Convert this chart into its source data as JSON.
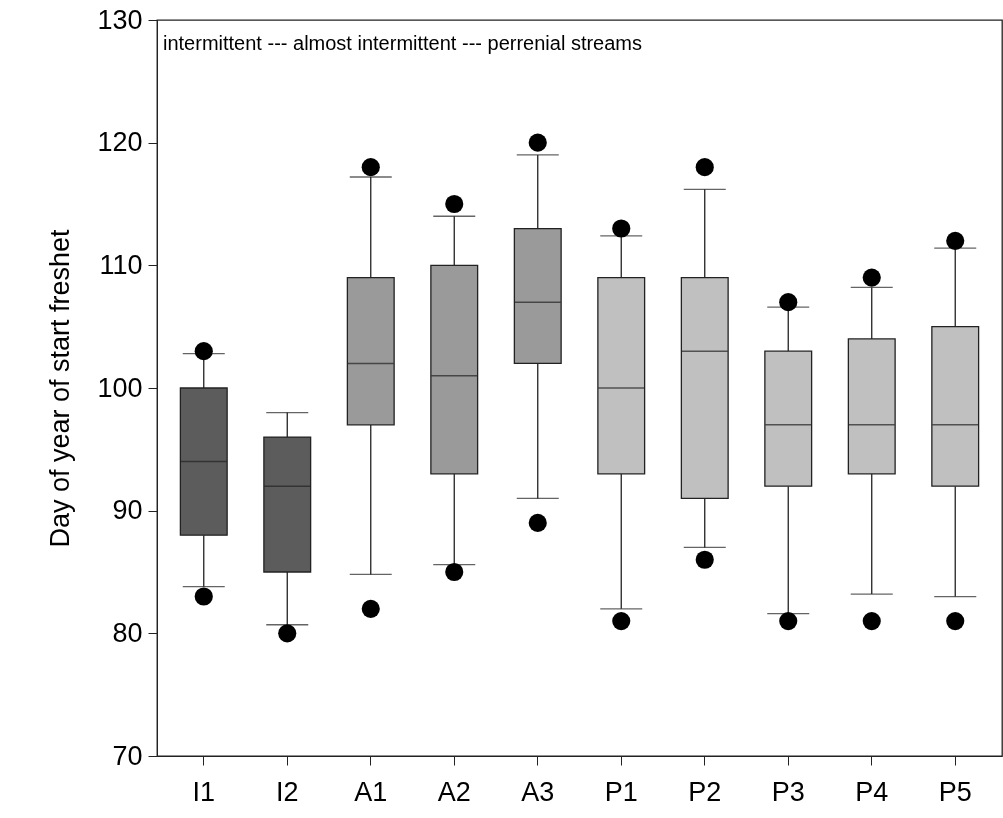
{
  "chart_data": {
    "type": "box",
    "ylabel": "Day of year of start freshet",
    "annotations": [
      "intermittent --- almost intermittent --- perrenial streams"
    ],
    "categories": [
      "I1",
      "I2",
      "A1",
      "A2",
      "A3",
      "P1",
      "P2",
      "P3",
      "P4",
      "P5"
    ],
    "colors": [
      "#5c5c5c",
      "#5c5c5c",
      "#9a9a9a",
      "#9a9a9a",
      "#9a9a9a",
      "#c0c0c0",
      "#c0c0c0",
      "#c0c0c0",
      "#c0c0c0",
      "#c0c0c0"
    ],
    "boxes": [
      {
        "low": 83.8,
        "q1": 88,
        "median": 94,
        "q3": 100,
        "high": 102.8,
        "outliers": [
          83,
          103
        ]
      },
      {
        "low": 80.7,
        "q1": 85,
        "median": 92,
        "q3": 96,
        "high": 98,
        "outliers": [
          80
        ]
      },
      {
        "low": 84.8,
        "q1": 97,
        "median": 102,
        "q3": 109,
        "high": 117.2,
        "outliers": [
          82,
          118
        ]
      },
      {
        "low": 85.6,
        "q1": 93,
        "median": 101,
        "q3": 110,
        "high": 114,
        "outliers": [
          85,
          115
        ]
      },
      {
        "low": 91,
        "q1": 102,
        "median": 107,
        "q3": 113,
        "high": 119,
        "outliers": [
          89,
          120
        ]
      },
      {
        "low": 82,
        "q1": 93,
        "median": 100,
        "q3": 109,
        "high": 112.4,
        "outliers": [
          81,
          113
        ]
      },
      {
        "low": 87,
        "q1": 91,
        "median": 103,
        "q3": 109,
        "high": 116.2,
        "outliers": [
          86,
          118
        ]
      },
      {
        "low": 81.6,
        "q1": 92,
        "median": 97,
        "q3": 103,
        "high": 106.6,
        "outliers": [
          81,
          107
        ]
      },
      {
        "low": 83.2,
        "q1": 93,
        "median": 97,
        "q3": 104,
        "high": 108.2,
        "outliers": [
          81,
          109
        ]
      },
      {
        "low": 83,
        "q1": 92,
        "median": 97,
        "q3": 105,
        "high": 111.4,
        "outliers": [
          81,
          112
        ]
      }
    ],
    "ylim": [
      70,
      130
    ],
    "yticks": [
      70,
      80,
      90,
      100,
      110,
      120,
      130
    ],
    "grid": false,
    "marker": "circle"
  }
}
